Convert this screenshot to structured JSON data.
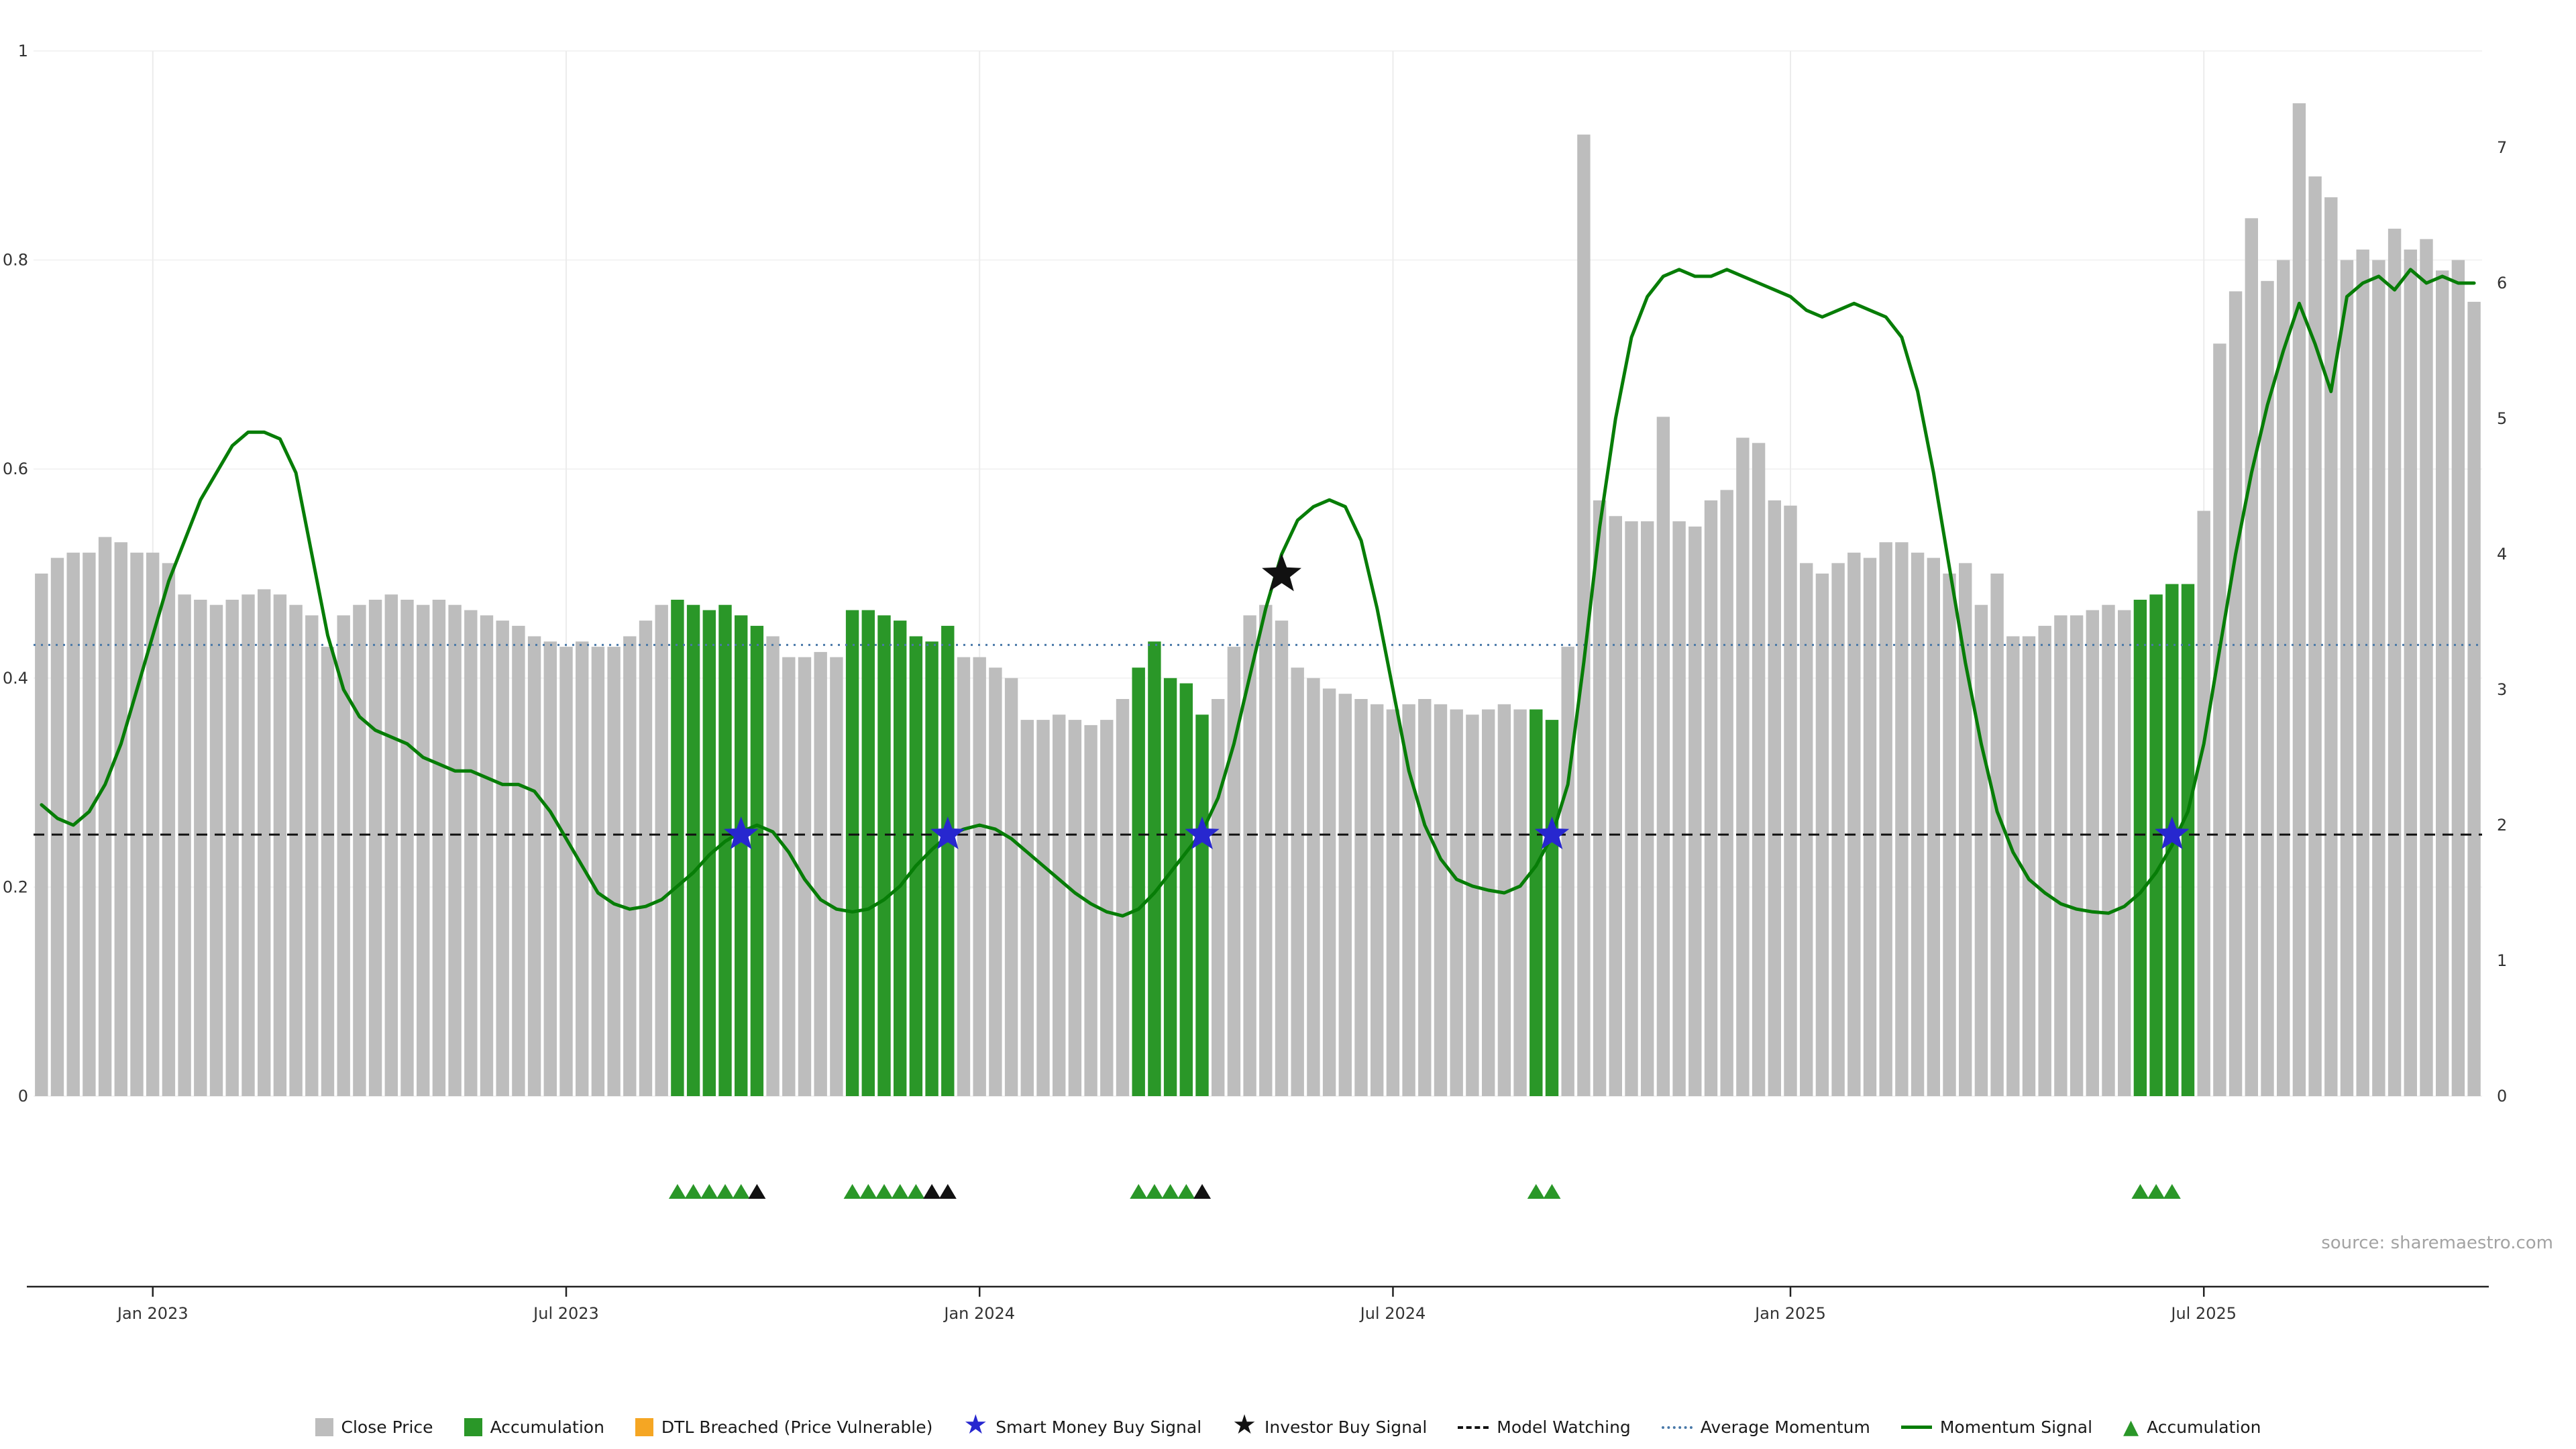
{
  "meta": {
    "source": "source: sharemaestro.com"
  },
  "chart_data": {
    "type": "bar",
    "description": "Weekly close price bars (left axis 0-1) with momentum signal line (right axis 0-7), buy signals and accumulation markers",
    "x_tick_labels": [
      "Jan 2023",
      "Jul 2023",
      "Jan 2024",
      "Jul 2024",
      "Jan 2025",
      "Jul 2025"
    ],
    "x_tick_indices": [
      7,
      33,
      59,
      85,
      110,
      136
    ],
    "left_axis": {
      "ticks": [
        0,
        0.2,
        0.4,
        0.6,
        0.8,
        1
      ],
      "range": [
        0,
        1
      ]
    },
    "right_axis": {
      "ticks": [
        0,
        1,
        2,
        3,
        4,
        5,
        6,
        7
      ],
      "range": [
        0,
        7
      ]
    },
    "close_price": [
      0.5,
      0.515,
      0.52,
      0.52,
      0.535,
      0.53,
      0.52,
      0.52,
      0.51,
      0.48,
      0.475,
      0.47,
      0.475,
      0.48,
      0.485,
      0.48,
      0.47,
      0.46,
      0.43,
      0.46,
      0.47,
      0.475,
      0.48,
      0.475,
      0.47,
      0.475,
      0.47,
      0.465,
      0.46,
      0.455,
      0.45,
      0.44,
      0.435,
      0.43,
      0.435,
      0.43,
      0.43,
      0.44,
      0.455,
      0.47,
      0.475,
      0.47,
      0.465,
      0.47,
      0.46,
      0.45,
      0.44,
      0.42,
      0.42,
      0.425,
      0.42,
      0.465,
      0.465,
      0.46,
      0.455,
      0.44,
      0.435,
      0.45,
      0.42,
      0.42,
      0.41,
      0.4,
      0.36,
      0.36,
      0.365,
      0.36,
      0.355,
      0.36,
      0.38,
      0.41,
      0.435,
      0.4,
      0.395,
      0.365,
      0.38,
      0.43,
      0.46,
      0.47,
      0.455,
      0.41,
      0.4,
      0.39,
      0.385,
      0.38,
      0.375,
      0.37,
      0.375,
      0.38,
      0.375,
      0.37,
      0.365,
      0.37,
      0.375,
      0.37,
      0.37,
      0.36,
      0.43,
      0.92,
      0.57,
      0.555,
      0.55,
      0.55,
      0.65,
      0.55,
      0.545,
      0.57,
      0.58,
      0.63,
      0.625,
      0.57,
      0.565,
      0.51,
      0.5,
      0.51,
      0.52,
      0.515,
      0.53,
      0.53,
      0.52,
      0.515,
      0.5,
      0.51,
      0.47,
      0.5,
      0.44,
      0.44,
      0.45,
      0.46,
      0.46,
      0.465,
      0.47,
      0.465,
      0.475,
      0.48,
      0.49,
      0.49,
      0.56,
      0.72,
      0.77,
      0.84,
      0.78,
      0.8,
      0.95,
      0.88,
      0.86,
      0.8,
      0.81,
      0.8,
      0.83,
      0.81,
      0.82,
      0.79,
      0.8,
      0.76
    ],
    "accumulation_indices": [
      40,
      41,
      42,
      43,
      44,
      45,
      51,
      52,
      53,
      54,
      55,
      56,
      57,
      69,
      70,
      71,
      72,
      73,
      94,
      95,
      132,
      133,
      134,
      135
    ],
    "momentum": [
      2.15,
      2.05,
      2.0,
      2.1,
      2.3,
      2.6,
      3.0,
      3.4,
      3.8,
      4.1,
      4.4,
      4.6,
      4.8,
      4.9,
      4.9,
      4.85,
      4.6,
      4.0,
      3.4,
      3.0,
      2.8,
      2.7,
      2.65,
      2.6,
      2.5,
      2.45,
      2.4,
      2.4,
      2.35,
      2.3,
      2.3,
      2.25,
      2.1,
      1.9,
      1.7,
      1.5,
      1.42,
      1.38,
      1.4,
      1.45,
      1.55,
      1.65,
      1.78,
      1.88,
      1.95,
      2.0,
      1.95,
      1.8,
      1.6,
      1.45,
      1.38,
      1.36,
      1.38,
      1.45,
      1.55,
      1.7,
      1.82,
      1.92,
      1.97,
      2.0,
      1.97,
      1.9,
      1.8,
      1.7,
      1.6,
      1.5,
      1.42,
      1.36,
      1.33,
      1.38,
      1.5,
      1.65,
      1.8,
      1.95,
      2.2,
      2.6,
      3.1,
      3.6,
      4.0,
      4.25,
      4.35,
      4.4,
      4.35,
      4.1,
      3.6,
      3.0,
      2.4,
      2.0,
      1.75,
      1.6,
      1.55,
      1.52,
      1.5,
      1.55,
      1.7,
      1.92,
      2.3,
      3.2,
      4.2,
      5.0,
      5.6,
      5.9,
      6.05,
      6.1,
      6.05,
      6.05,
      6.1,
      6.05,
      6.0,
      5.95,
      5.9,
      5.8,
      5.75,
      5.8,
      5.85,
      5.8,
      5.75,
      5.6,
      5.2,
      4.6,
      3.9,
      3.2,
      2.6,
      2.1,
      1.8,
      1.6,
      1.5,
      1.42,
      1.38,
      1.36,
      1.35,
      1.4,
      1.5,
      1.65,
      1.85,
      2.1,
      2.6,
      3.3,
      4.0,
      4.6,
      5.1,
      5.5,
      5.85,
      5.55,
      5.2,
      5.9,
      6.0,
      6.05,
      5.95,
      6.1,
      6.0,
      6.05,
      6.0,
      6.0
    ],
    "average_momentum": 3.33,
    "model_watching": 1.93,
    "smart_money_buy_indices": [
      44,
      57,
      73,
      95,
      134
    ],
    "investor_buy": {
      "index": 78,
      "value": 3.85
    },
    "accumulation_markers": {
      "green": [
        40,
        41,
        42,
        43,
        44,
        51,
        52,
        53,
        54,
        55,
        69,
        70,
        71,
        72,
        94,
        95,
        132,
        133,
        134
      ],
      "black": [
        45,
        56,
        57,
        73
      ]
    },
    "colors": {
      "close_price": "#bdbdbd",
      "accumulation": "#2a9728",
      "momentum_line": "#077d07",
      "average_momentum": "#4878a8",
      "model_watching": "#111111",
      "smart_money_star": "#2727cf",
      "investor_star": "#111111",
      "dtl_breached": "#f5a623",
      "grid": "#ececec",
      "axis_text": "#333333"
    }
  },
  "legend": {
    "items": [
      {
        "type": "square",
        "color": "#bdbdbd",
        "label": "Close Price",
        "name": "legend-item-close-price"
      },
      {
        "type": "square",
        "color": "#2a9728",
        "label": "Accumulation",
        "name": "legend-item-accumulation-bar"
      },
      {
        "type": "square",
        "color": "#f5a623",
        "label": "DTL Breached (Price Vulnerable)",
        "name": "legend-item-dtl-breached"
      },
      {
        "type": "star",
        "color": "#2727cf",
        "label": "Smart Money Buy Signal",
        "name": "legend-item-smart-money-buy"
      },
      {
        "type": "star",
        "color": "#111111",
        "label": "Investor Buy Signal",
        "name": "legend-item-investor-buy"
      },
      {
        "type": "dashed",
        "color": "#111111",
        "label": "Model Watching",
        "name": "legend-item-model-watching"
      },
      {
        "type": "dotted",
        "color": "#4878a8",
        "label": "Average Momentum",
        "name": "legend-item-average-momentum"
      },
      {
        "type": "line",
        "color": "#077d07",
        "label": "Momentum Signal",
        "name": "legend-item-momentum-signal"
      },
      {
        "type": "triangle",
        "color": "#2a9728",
        "label": "Accumulation",
        "name": "legend-item-accumulation-marker"
      }
    ]
  }
}
